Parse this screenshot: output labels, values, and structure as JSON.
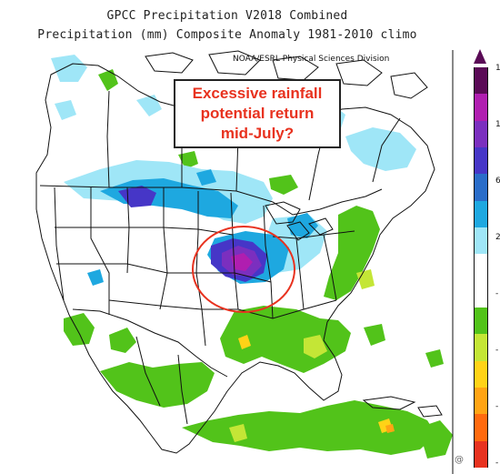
{
  "title": {
    "line1": "GPCC Precipitation V2018 Combined",
    "line2": "Precipitation (mm) Composite Anomaly 1981-2010 climo"
  },
  "credit": "NOAA/ESRL Physical Sciences Division",
  "callout": {
    "line1": "Excessive rainfall",
    "line2": "potential return",
    "line3": "mid-July?"
  },
  "scale": {
    "colors": [
      "#5a0a56",
      "#b01eb0",
      "#7b2fbf",
      "#4636c7",
      "#2a6dc9",
      "#1ea8e0",
      "#9fe6f7",
      "#ffffff",
      "#ffffff",
      "#52c31a",
      "#c4e636",
      "#ffd317",
      "#ffa414",
      "#ff6a0e",
      "#e8321f"
    ],
    "labels": [
      "1",
      "1",
      "6",
      "2",
      "-",
      "-",
      "-",
      "-"
    ]
  },
  "watermark": "@"
}
